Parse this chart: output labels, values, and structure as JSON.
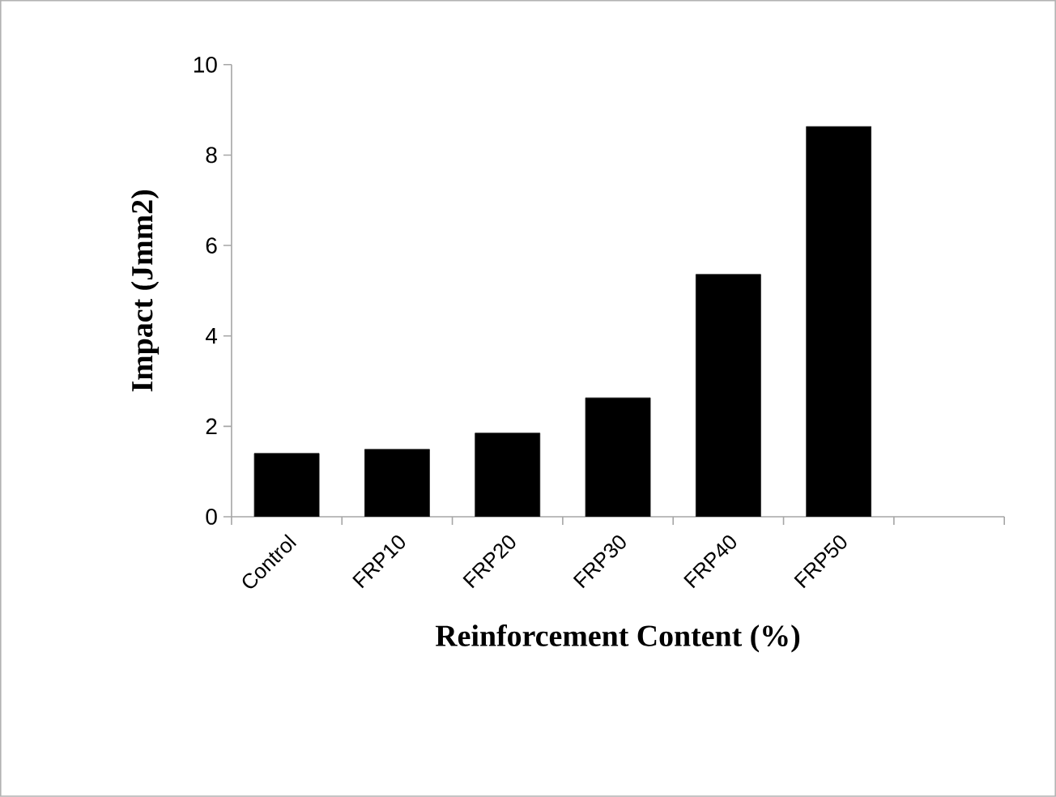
{
  "chart_data": {
    "type": "bar",
    "xlabel": "Reinforcement Content (%)",
    "ylabel": "Impact (Jmm2)",
    "categories": [
      "Control",
      "FRP10",
      "FRP20",
      "FRP30",
      "FRP40",
      "FRP50",
      null
    ],
    "values": [
      1.4,
      1.49,
      1.85,
      2.63,
      5.36,
      8.63,
      null
    ],
    "color": "#000000",
    "ylim": [
      0,
      10
    ],
    "yticks": [
      0,
      2,
      4,
      6,
      8,
      10
    ],
    "grid": false
  }
}
